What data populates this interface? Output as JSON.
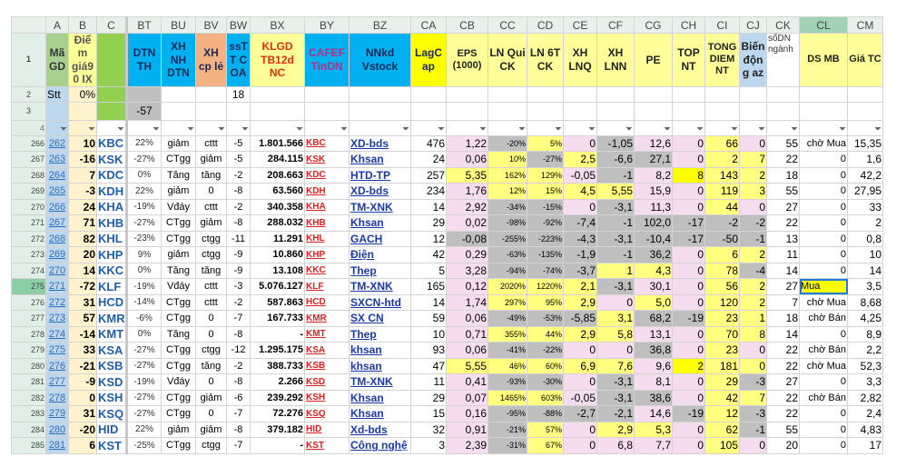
{
  "columns": [
    "A",
    "B",
    "C",
    "BT",
    "BU",
    "BV",
    "BW",
    "BX",
    "BY",
    "BZ",
    "CA",
    "CB",
    "CC",
    "CD",
    "CE",
    "CF",
    "CG",
    "CH",
    "CI",
    "CJ",
    "CK",
    "CL",
    "CM"
  ],
  "selected_column": "CL",
  "selected_row": "275",
  "header_row1": [
    {
      "label": "Mã GD",
      "fill": "#a9d08e",
      "color": "#333"
    },
    {
      "label": "Điểm giá90 IX",
      "fill": "#ffff99",
      "color": "#555"
    },
    {
      "label": "",
      "fill": "#92d050",
      "color": "#333"
    },
    {
      "label": "DTN TH",
      "fill": "#00b0f0",
      "color": "#1a2a5a"
    },
    {
      "label": "XH NH DTN",
      "fill": "#00b0f0",
      "color": "#1a2a5a"
    },
    {
      "label": "XH cp lẻ",
      "fill": "#f4b183",
      "color": "#1a2a5a"
    },
    {
      "label": "ssTT C OA",
      "fill": "#00b0f0",
      "color": "#1a2a5a"
    },
    {
      "label": "KLGD TB12d NC",
      "fill": "#ffff99",
      "color": "#e03010"
    },
    {
      "label": "CAFEF TinDN",
      "fill": "#00b0f0",
      "color": "#b0308a"
    },
    {
      "label": "NNkd Vstock",
      "fill": "#00b0f0",
      "color": "#1a2a5a"
    },
    {
      "label": "LagCap",
      "fill": "#ffff00",
      "color": "#1a2a5a"
    },
    {
      "label": "EPS (1000)",
      "fill": "#ffff99",
      "color": "#222"
    },
    {
      "label": "LN Qui CK",
      "fill": "#ffff99",
      "color": "#222"
    },
    {
      "label": "LN 6T CK",
      "fill": "#ffff99",
      "color": "#222"
    },
    {
      "label": "XH LNQ",
      "fill": "#ffff99",
      "color": "#222"
    },
    {
      "label": "XH LNN",
      "fill": "#ffff99",
      "color": "#222"
    },
    {
      "label": "PE",
      "fill": "#ffff99",
      "color": "#222"
    },
    {
      "label": "TOP NT",
      "fill": "#ffff99",
      "color": "#222"
    },
    {
      "label": "TONG DIEM NT",
      "fill": "#ffff99",
      "color": "#222"
    },
    {
      "label": "Biến động az",
      "fill": "#bdd7ee",
      "color": "#222"
    },
    {
      "label": "sốDN ngành",
      "fill": "#ffffff",
      "color": "#333"
    },
    {
      "label": "DS MB",
      "fill": "#ffff99",
      "color": "#222"
    },
    {
      "label": "Giá TC",
      "fill": "#ffff99",
      "color": "#222"
    }
  ],
  "row2": {
    "A": "Stt",
    "B": "0%",
    "BW": "18"
  },
  "row3": {
    "BT": "-57"
  },
  "fill_legend": {
    "p": "#f5dcef",
    "g": "#bfbfbf",
    "y": "#ffff80",
    "Y": "#ffff00"
  },
  "rows": [
    {
      "n": "266",
      "A": "262",
      "B": "10",
      "C": "KBC",
      "BT": "22%",
      "BU": "giảm",
      "BV": "cttt",
      "BW": "-5",
      "BX": "1.801.566",
      "BY": "KBC",
      "BZ": "XD-bds",
      "CA": "476",
      "CB": "1,22",
      "CC": "-20%",
      "CD": "5%",
      "CE": "0",
      "CF": "-1,05",
      "CG": "12,6",
      "CH": "0",
      "CI": "66",
      "CJ": "0",
      "CK": "55",
      "CL": "chờ Mua",
      "CM": "15,35",
      "fills": "pgypgppyp"
    },
    {
      "n": "267",
      "A": "263",
      "B": "-16",
      "C": "KSK",
      "BT": "-27%",
      "BU": "CTgg",
      "BV": "giảm",
      "BW": "-5",
      "BX": "284.115",
      "BY": "KSK",
      "BZ": "Khsan",
      "CA": "24",
      "CB": "0,06",
      "CC": "10%",
      "CD": "-27%",
      "CE": "2,5",
      "CF": "-6,6",
      "CG": "27,1",
      "CH": "0",
      "CI": "2",
      "CJ": "7",
      "CK": "22",
      "CL": "0",
      "CM": "1,6",
      "fills": "pygyggpyy"
    },
    {
      "n": "268",
      "A": "264",
      "B": "7",
      "C": "KDC",
      "BT": "0%",
      "BU": "Tăng",
      "BV": "tăng",
      "BW": "-2",
      "BX": "208.663",
      "BY": "KDC",
      "BZ": "HTD-TP",
      "CA": "257",
      "CB": "5,35",
      "CC": "162%",
      "CD": "129%",
      "CE": "-0,05",
      "CF": "-1",
      "CG": "8,2",
      "CH": "8",
      "CI": "143",
      "CJ": "2",
      "CK": "18",
      "CL": "0",
      "CM": "42,2",
      "fills": "yyypgpYyy"
    },
    {
      "n": "269",
      "A": "265",
      "B": "-3",
      "C": "KDH",
      "BT": "22%",
      "BU": "giảm",
      "BV": "0",
      "BW": "-8",
      "BX": "63.560",
      "BY": "KDH",
      "BZ": "XD-bds",
      "CA": "234",
      "CB": "1,76",
      "CC": "12%",
      "CD": "15%",
      "CE": "4,5",
      "CF": "5,55",
      "CG": "15,9",
      "CH": "0",
      "CI": "119",
      "CJ": "3",
      "CK": "55",
      "CL": "0",
      "CM": "27,95",
      "fills": "pyyyyppyy"
    },
    {
      "n": "270",
      "A": "266",
      "B": "24",
      "C": "KHA",
      "BT": "-19%",
      "BU": "Vđáy",
      "BV": "cttt",
      "BW": "-2",
      "BX": "340.358",
      "BY": "KHA",
      "BZ": "TM-XNK",
      "CA": "14",
      "CB": "2,92",
      "CC": "-34%",
      "CD": "-15%",
      "CE": "0",
      "CF": "-3,1",
      "CG": "11,3",
      "CH": "0",
      "CI": "44",
      "CJ": "0",
      "CK": "27",
      "CL": "0",
      "CM": "33",
      "fills": "pggpgppyp"
    },
    {
      "n": "271",
      "A": "267",
      "B": "71",
      "C": "KHB",
      "BT": "-27%",
      "BU": "CTgg",
      "BV": "giảm",
      "BW": "-8",
      "BX": "288.032",
      "BY": "KHB",
      "BZ": "Khsan",
      "CA": "29",
      "CB": "0,02",
      "CC": "-98%",
      "CD": "-92%",
      "CE": "-7,4",
      "CF": "-1",
      "CG": "102,0",
      "CH": "-17",
      "CI": "-2",
      "CJ": "-2",
      "CK": "22",
      "CL": "0",
      "CM": "2",
      "fills": "pgggggggg"
    },
    {
      "n": "272",
      "A": "268",
      "B": "82",
      "C": "KHL",
      "BT": "-23%",
      "BU": "CTgg",
      "BV": "ctgg",
      "BW": "-11",
      "BX": "11.291",
      "BY": "KHL",
      "BZ": "GACH",
      "CA": "12",
      "CB": "-0,08",
      "CC": "-255%",
      "CD": "-223%",
      "CE": "-4,3",
      "CF": "-3,1",
      "CG": "-10,4",
      "CH": "-17",
      "CI": "-50",
      "CJ": "-1",
      "CK": "13",
      "CL": "0",
      "CM": "0,8",
      "fills": "ggggggggg"
    },
    {
      "n": "273",
      "A": "269",
      "B": "20",
      "C": "KHP",
      "BT": "9%",
      "BU": "giảm",
      "BV": "ctgg",
      "BW": "-9",
      "BX": "10.860",
      "BY": "KHP",
      "BZ": "Điện",
      "CA": "42",
      "CB": "0,29",
      "CC": "-63%",
      "CD": "-135%",
      "CE": "-1,9",
      "CF": "-1",
      "CG": "36,2",
      "CH": "0",
      "CI": "6",
      "CJ": "2",
      "CK": "11",
      "CL": "0",
      "CM": "10",
      "fills": "pgggggpyy"
    },
    {
      "n": "274",
      "A": "270",
      "B": "14",
      "C": "KKC",
      "BT": "0%",
      "BU": "Tăng",
      "BV": "tăng",
      "BW": "-9",
      "BX": "13.108",
      "BY": "KKC",
      "BZ": "Thep",
      "CA": "5",
      "CB": "3,28",
      "CC": "-94%",
      "CD": "-74%",
      "CE": "-3,7",
      "CF": "1",
      "CG": "4,3",
      "CH": "0",
      "CI": "78",
      "CJ": "-4",
      "CK": "14",
      "CL": "0",
      "CM": "14",
      "fills": "pgggyypyg"
    },
    {
      "n": "275",
      "A": "271",
      "B": "-72",
      "C": "KLF",
      "BT": "-19%",
      "BU": "Vđáy",
      "BV": "cttt",
      "BW": "-3",
      "BX": "5.076.127",
      "BY": "KLF",
      "BZ": "TM-XNK",
      "CA": "165",
      "CB": "0,12",
      "CC": "2020%",
      "CD": "1220%",
      "CE": "2,1",
      "CF": "-3,1",
      "CG": "30,1",
      "CH": "0",
      "CI": "56",
      "CJ": "2",
      "CK": "27",
      "CL": "Mua",
      "CM": "3,5",
      "fills": "pyyygppyy"
    },
    {
      "n": "276",
      "A": "272",
      "B": "31",
      "C": "HCD",
      "BT": "-14%",
      "BU": "CTgg",
      "BV": "cttt",
      "BW": "-2",
      "BX": "587.863",
      "BY": "HCD",
      "BZ": "SXCN-htd",
      "CA": "14",
      "CB": "1,74",
      "CC": "297%",
      "CD": "95%",
      "CE": "2,9",
      "CF": "0",
      "CG": "5,0",
      "CH": "0",
      "CI": "120",
      "CJ": "2",
      "CK": "7",
      "CL": "chờ Mua",
      "CM": "8,68",
      "fills": "pyyypypyy"
    },
    {
      "n": "277",
      "A": "273",
      "B": "57",
      "C": "KMR",
      "BT": "-6%",
      "BU": "CTgg",
      "BV": "0",
      "BW": "-7",
      "BX": "167.733",
      "BY": "KMR",
      "BZ": "SX CN",
      "CA": "59",
      "CB": "0,06",
      "CC": "-49%",
      "CD": "-53%",
      "CE": "-5,85",
      "CF": "3,1",
      "CG": "68,2",
      "CH": "-19",
      "CI": "23",
      "CJ": "1",
      "CK": "18",
      "CL": "chờ Bán",
      "CM": "4,25",
      "fills": "pgggyggyy"
    },
    {
      "n": "278",
      "A": "274",
      "B": "-14",
      "C": "KMT",
      "BT": "0%",
      "BU": "Tăng",
      "BV": "0",
      "BW": "-8",
      "BX": "-",
      "BY": "KMT",
      "BZ": "Thep",
      "CA": "10",
      "CB": "0,71",
      "CC": "355%",
      "CD": "44%",
      "CE": "2,9",
      "CF": "5,8",
      "CG": "13,1",
      "CH": "0",
      "CI": "70",
      "CJ": "8",
      "CK": "14",
      "CL": "0",
      "CM": "8,9",
      "fills": "pyyyyppyy"
    },
    {
      "n": "279",
      "A": "275",
      "B": "33",
      "C": "KSA",
      "BT": "-27%",
      "BU": "CTgg",
      "BV": "ctgg",
      "BW": "-12",
      "BX": "1.295.175",
      "BY": "KSA",
      "BZ": "khsan",
      "CA": "93",
      "CB": "0,06",
      "CC": "-41%",
      "CD": "-22%",
      "CE": "0",
      "CF": "0",
      "CG": "36,8",
      "CH": "0",
      "CI": "23",
      "CJ": "0",
      "CK": "22",
      "CL": "chờ Bán",
      "CM": "2,2",
      "fills": "pggppgpyp"
    },
    {
      "n": "280",
      "A": "276",
      "B": "-21",
      "C": "KSB",
      "BT": "-27%",
      "BU": "CTgg",
      "BV": "tăng",
      "BW": "-2",
      "BX": "388.733",
      "BY": "KSB",
      "BZ": "khsan",
      "CA": "47",
      "CB": "5,55",
      "CC": "46%",
      "CD": "60%",
      "CE": "6,9",
      "CF": "7,6",
      "CG": "9,6",
      "CH": "2",
      "CI": "181",
      "CJ": "0",
      "CK": "22",
      "CL": "chờ Mua",
      "CM": "52,3",
      "fills": "yyyyypYyy"
    },
    {
      "n": "281",
      "A": "277",
      "B": "-9",
      "C": "KSD",
      "BT": "-19%",
      "BU": "Vđáy",
      "BV": "0",
      "BW": "-8",
      "BX": "2.266",
      "BY": "KSD",
      "BZ": "TM-XNK",
      "CA": "11",
      "CB": "0,41",
      "CC": "-93%",
      "CD": "-30%",
      "CE": "0",
      "CF": "-3,1",
      "CG": "8,1",
      "CH": "0",
      "CI": "29",
      "CJ": "-3",
      "CK": "27",
      "CL": "0",
      "CM": "3,3",
      "fills": "pggpgppyg"
    },
    {
      "n": "282",
      "A": "278",
      "B": "0",
      "C": "KSH",
      "BT": "-27%",
      "BU": "CTgg",
      "BV": "giảm",
      "BW": "-6",
      "BX": "239.292",
      "BY": "KSH",
      "BZ": "Khsan",
      "CA": "29",
      "CB": "0,07",
      "CC": "1465%",
      "CD": "603%",
      "CE": "-0,05",
      "CF": "-3,1",
      "CG": "38,6",
      "CH": "0",
      "CI": "42",
      "CJ": "7",
      "CK": "22",
      "CL": "chờ Bán",
      "CM": "2,82",
      "fills": "pyypggpyy"
    },
    {
      "n": "283",
      "A": "279",
      "B": "31",
      "C": "KSQ",
      "BT": "-27%",
      "BU": "CTgg",
      "BV": "0",
      "BW": "-7",
      "BX": "72.276",
      "BY": "KSQ",
      "BZ": "Khsan",
      "CA": "15",
      "CB": "0,16",
      "CC": "-95%",
      "CD": "-88%",
      "CE": "-2,7",
      "CF": "-2,1",
      "CG": "14,6",
      "CH": "-19",
      "CI": "12",
      "CJ": "-3",
      "CK": "22",
      "CL": "0",
      "CM": "2,4",
      "fills": "pggggpgyg"
    },
    {
      "n": "284",
      "A": "280",
      "B": "-20",
      "C": "HID",
      "BT": "22%",
      "BU": "giảm",
      "BV": "giảm",
      "BW": "-8",
      "BX": "379.182",
      "BY": "HID",
      "BZ": "Xd-bds",
      "CA": "32",
      "CB": "0,91",
      "CC": "-21%",
      "CD": "57%",
      "CE": "0",
      "CF": "2,9",
      "CG": "5,3",
      "CH": "0",
      "CI": "62",
      "CJ": "-1",
      "CK": "55",
      "CL": "0",
      "CM": "4,83",
      "fills": "pgypyypyg"
    },
    {
      "n": "285",
      "A": "281",
      "B": "6",
      "C": "KST",
      "BT": "-25%",
      "BU": "CTgg",
      "BV": "ctgg",
      "BW": "-7",
      "BX": "-",
      "BY": "KST",
      "BZ": "Công nghệ",
      "CA": "3",
      "CB": "2,39",
      "CC": "-31%",
      "CD": "67%",
      "CE": "0",
      "CF": "6,8",
      "CG": "7,7",
      "CH": "0",
      "CI": "105",
      "CJ": "0",
      "CK": "20",
      "CL": "0",
      "CM": "17",
      "fills": "pgyppppyp"
    }
  ]
}
